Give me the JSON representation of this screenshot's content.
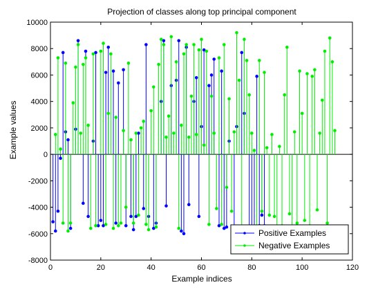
{
  "chart_data": {
    "type": "stem",
    "title": "Projection of classes along top principal component",
    "xlabel": "Example indices",
    "ylabel": "Example values",
    "xlim": [
      0,
      120
    ],
    "ylim": [
      -8000,
      10000
    ],
    "xticks": [
      0,
      20,
      40,
      60,
      80,
      100,
      120
    ],
    "yticks": [
      -8000,
      -6000,
      -4000,
      -2000,
      0,
      2000,
      4000,
      6000,
      8000,
      10000
    ],
    "grid": false,
    "legend": {
      "position": "bottom-right"
    },
    "series": [
      {
        "name": "Positive Examples",
        "color": "#0000ff",
        "points": [
          [
            1,
            -5100
          ],
          [
            2,
            -5800
          ],
          [
            3,
            -4300
          ],
          [
            4,
            -300
          ],
          [
            5,
            7700
          ],
          [
            6,
            1700
          ],
          [
            7,
            1100
          ],
          [
            8,
            -5600
          ],
          [
            10,
            1900
          ],
          [
            11,
            8600
          ],
          [
            13,
            -3700
          ],
          [
            14,
            7800
          ],
          [
            15,
            -4700
          ],
          [
            17,
            1000
          ],
          [
            18,
            7700
          ],
          [
            19,
            -5400
          ],
          [
            20,
            -5000
          ],
          [
            21,
            -5400
          ],
          [
            22,
            6200
          ],
          [
            23,
            8100
          ],
          [
            25,
            6300
          ],
          [
            26,
            -5200
          ],
          [
            27,
            5400
          ],
          [
            29,
            6400
          ],
          [
            30,
            -5400
          ],
          [
            32,
            -4700
          ],
          [
            33,
            -5700
          ],
          [
            34,
            -4700
          ],
          [
            35,
            1600
          ],
          [
            37,
            -4100
          ],
          [
            38,
            8300
          ],
          [
            39,
            -4700
          ],
          [
            41,
            -5600
          ],
          [
            42,
            -5200
          ],
          [
            44,
            4000
          ],
          [
            45,
            8600
          ],
          [
            46,
            -3900
          ],
          [
            48,
            5200
          ],
          [
            50,
            5600
          ],
          [
            51,
            8600
          ],
          [
            52,
            -5800
          ],
          [
            53,
            -6000
          ],
          [
            54,
            8100
          ],
          [
            55,
            -3800
          ],
          [
            57,
            4000
          ],
          [
            58,
            5800
          ],
          [
            59,
            -4700
          ],
          [
            60,
            2100
          ],
          [
            61,
            7900
          ],
          [
            63,
            5200
          ],
          [
            64,
            6000
          ],
          [
            65,
            7200
          ],
          [
            67,
            -5400
          ],
          [
            68,
            6300
          ],
          [
            69,
            -5600
          ],
          [
            70,
            -5500
          ],
          [
            71,
            1000
          ],
          [
            73,
            -5600
          ],
          [
            74,
            2100
          ],
          [
            76,
            7700
          ],
          [
            77,
            3100
          ],
          [
            79,
            -5700
          ],
          [
            80,
            -6000
          ],
          [
            81,
            -5500
          ],
          [
            82,
            5900
          ],
          [
            83,
            -5400
          ],
          [
            84,
            -4600
          ],
          [
            85,
            -5400
          ]
        ]
      },
      {
        "name": "Negative Examples",
        "color": "#00ee00",
        "points": [
          [
            2,
            1500
          ],
          [
            3,
            7300
          ],
          [
            4,
            400
          ],
          [
            5,
            -5200
          ],
          [
            6,
            6900
          ],
          [
            7,
            -5800
          ],
          [
            8,
            -5200
          ],
          [
            9,
            3900
          ],
          [
            10,
            6600
          ],
          [
            11,
            8300
          ],
          [
            12,
            1600
          ],
          [
            13,
            6800
          ],
          [
            14,
            7300
          ],
          [
            15,
            2200
          ],
          [
            16,
            -5600
          ],
          [
            17,
            7600
          ],
          [
            18,
            -5400
          ],
          [
            20,
            7800
          ],
          [
            21,
            8400
          ],
          [
            22,
            -5300
          ],
          [
            23,
            3100
          ],
          [
            24,
            7600
          ],
          [
            25,
            -5600
          ],
          [
            26,
            2800
          ],
          [
            27,
            -5400
          ],
          [
            28,
            -5200
          ],
          [
            29,
            1800
          ],
          [
            30,
            -4000
          ],
          [
            31,
            6900
          ],
          [
            32,
            1100
          ],
          [
            33,
            -5200
          ],
          [
            34,
            1600
          ],
          [
            35,
            -4600
          ],
          [
            36,
            2000
          ],
          [
            37,
            2500
          ],
          [
            38,
            -5300
          ],
          [
            39,
            -5700
          ],
          [
            40,
            3300
          ],
          [
            41,
            5100
          ],
          [
            42,
            -5500
          ],
          [
            43,
            6800
          ],
          [
            44,
            8700
          ],
          [
            45,
            8300
          ],
          [
            46,
            1300
          ],
          [
            47,
            2900
          ],
          [
            48,
            8900
          ],
          [
            49,
            1600
          ],
          [
            50,
            7000
          ],
          [
            51,
            -5600
          ],
          [
            52,
            2200
          ],
          [
            53,
            7600
          ],
          [
            54,
            8300
          ],
          [
            55,
            1300
          ],
          [
            56,
            4400
          ],
          [
            57,
            8300
          ],
          [
            58,
            1500
          ],
          [
            59,
            7900
          ],
          [
            60,
            8700
          ],
          [
            61,
            700
          ],
          [
            62,
            7800
          ],
          [
            63,
            -5300
          ],
          [
            64,
            4400
          ],
          [
            65,
            1600
          ],
          [
            66,
            -4100
          ],
          [
            67,
            7300
          ],
          [
            68,
            -5300
          ],
          [
            69,
            8300
          ],
          [
            70,
            -2500
          ],
          [
            71,
            4200
          ],
          [
            72,
            -4300
          ],
          [
            73,
            1700
          ],
          [
            74,
            9200
          ],
          [
            75,
            5600
          ],
          [
            76,
            -5700
          ],
          [
            77,
            8700
          ],
          [
            78,
            7100
          ],
          [
            79,
            4500
          ],
          [
            80,
            1600
          ],
          [
            81,
            300
          ],
          [
            82,
            -5800
          ],
          [
            83,
            7100
          ],
          [
            84,
            -4300
          ],
          [
            85,
            6200
          ],
          [
            86,
            500
          ],
          [
            87,
            -4600
          ],
          [
            88,
            1500
          ],
          [
            89,
            -4700
          ],
          [
            90,
            -5600
          ],
          [
            91,
            600
          ],
          [
            92,
            -5400
          ],
          [
            93,
            4500
          ],
          [
            94,
            8100
          ],
          [
            95,
            -4500
          ],
          [
            96,
            -5700
          ],
          [
            97,
            1700
          ],
          [
            98,
            -5200
          ],
          [
            99,
            6300
          ],
          [
            100,
            3100
          ],
          [
            101,
            -5000
          ],
          [
            102,
            6100
          ],
          [
            103,
            -5400
          ],
          [
            104,
            5900
          ],
          [
            105,
            6400
          ],
          [
            106,
            -4200
          ],
          [
            107,
            1600
          ],
          [
            108,
            4100
          ],
          [
            109,
            7800
          ],
          [
            110,
            -5200
          ],
          [
            111,
            8800
          ],
          [
            112,
            7000
          ],
          [
            113,
            1800
          ]
        ]
      }
    ]
  }
}
